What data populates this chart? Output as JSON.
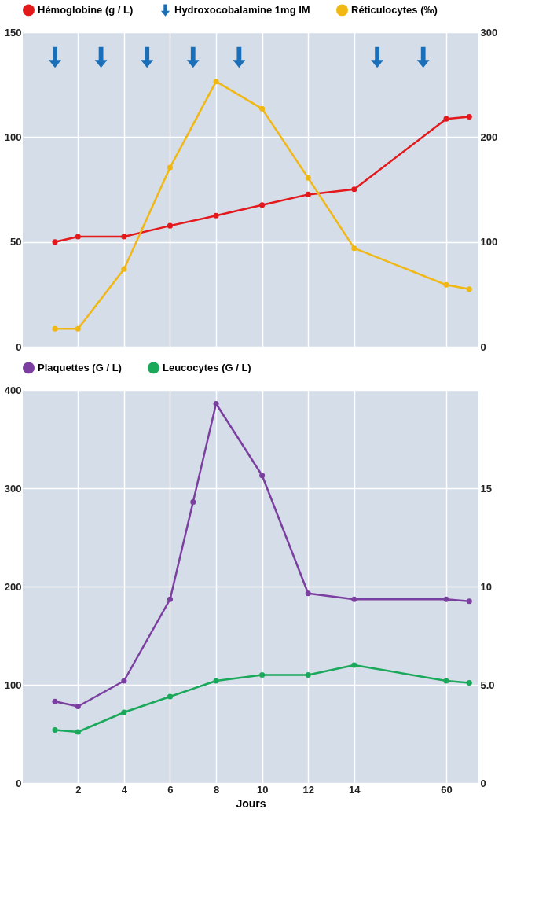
{
  "chart_data": [
    {
      "type": "line",
      "categories": [
        null,
        null,
        "2",
        null,
        "4",
        null,
        "6",
        null,
        "8",
        null,
        "10",
        null,
        "12",
        null,
        "14",
        null,
        null,
        null,
        "60",
        null
      ],
      "ylim": [
        0,
        150
      ],
      "yticks": [
        0,
        50,
        100,
        150
      ],
      "y2lim": [
        0,
        300
      ],
      "y2ticks": [
        0,
        100,
        200,
        300
      ],
      "grid": true,
      "legend": "top",
      "marker": "circle",
      "line_style": "solid",
      "tick_labels": "y",
      "series": [
        {
          "name": "Hémoglobine  (g / L)",
          "color": "#e3191c",
          "values": [
            null,
            50,
            52.5,
            null,
            52.5,
            null,
            57.7,
            null,
            62.5,
            null,
            67.6,
            null,
            72.6,
            null,
            75.1,
            null,
            null,
            null,
            108.7,
            109.7
          ]
        },
        {
          "name": "Hydroxocobalamine 1mg IM",
          "type": "scatter",
          "color": "#1a6fb8",
          "values": [
            null,
            138,
            null,
            138,
            null,
            138,
            null,
            138,
            null,
            138,
            null,
            null,
            null,
            null,
            null,
            138,
            null,
            138,
            null,
            null
          ]
        },
        {
          "name": "Réticulocytes  (‰)",
          "color": "#f1b712",
          "axis": "y2",
          "values": [
            null,
            17,
            17,
            null,
            74,
            null,
            171,
            null,
            253,
            null,
            227,
            null,
            161,
            null,
            94,
            null,
            null,
            null,
            59,
            55
          ]
        }
      ]
    },
    {
      "type": "line",
      "xlabel": "Jours",
      "categories": [
        null,
        null,
        "2",
        null,
        "4",
        null,
        "6",
        null,
        "8",
        null,
        "10",
        null,
        "12",
        null,
        "14",
        null,
        null,
        null,
        "60",
        null
      ],
      "ylim": [
        0,
        400
      ],
      "yticks": [
        0,
        100,
        200,
        300,
        400
      ],
      "y2lim": [
        0,
        20
      ],
      "y2ticks": [
        0,
        {
          "value": 5,
          "label": "5.0"
        },
        10,
        15
      ],
      "grid": true,
      "legend": "top",
      "marker": "circle",
      "line_style": "solid",
      "series": [
        {
          "name": "Plaquettes (G / L)",
          "color": "#7b3fa0",
          "values": [
            null,
            83,
            78,
            null,
            104,
            null,
            187,
            286,
            386,
            null,
            313,
            null,
            193,
            null,
            187,
            null,
            null,
            null,
            187,
            185
          ]
        },
        {
          "name": "Leucocytes (G / L)",
          "color": "#1aa85a",
          "axis": "y2",
          "values": [
            null,
            2.7,
            2.6,
            null,
            3.6,
            null,
            4.4,
            null,
            5.2,
            null,
            5.5,
            null,
            5.5,
            null,
            6.0,
            null,
            null,
            null,
            5.2,
            5.1
          ]
        }
      ]
    }
  ]
}
